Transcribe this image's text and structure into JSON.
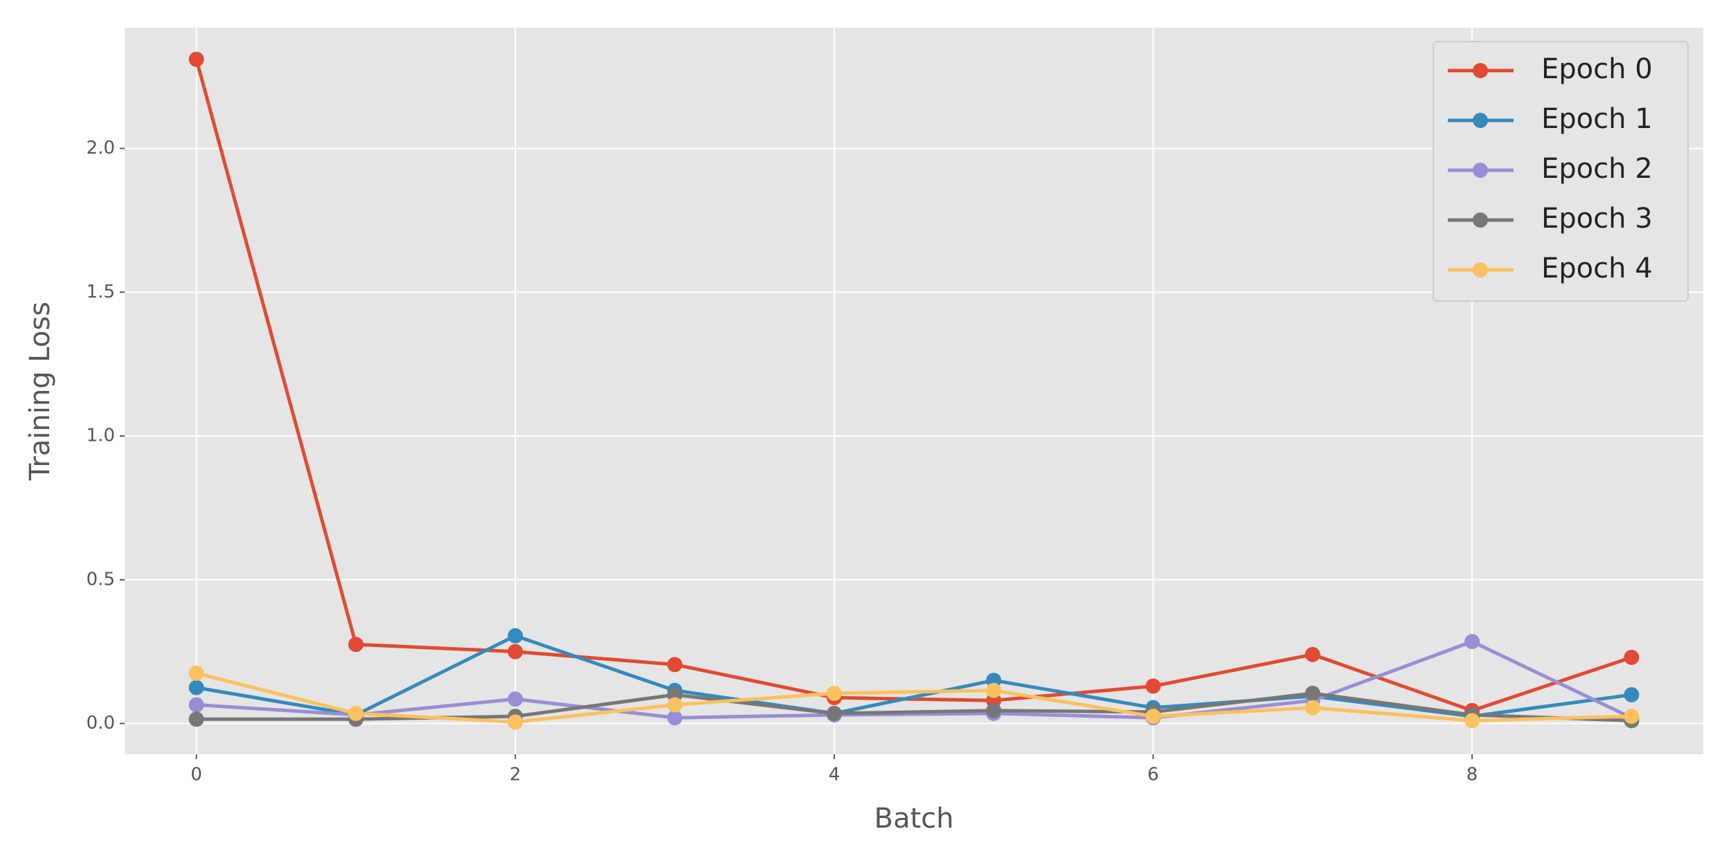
{
  "chart_data": {
    "type": "line",
    "x_label": "Batch",
    "y_label": "Training Loss",
    "x": [
      0,
      1,
      2,
      3,
      4,
      5,
      6,
      7,
      8,
      9
    ],
    "series": [
      {
        "name": "Epoch 0",
        "color": "#e24a33",
        "values": [
          2.31,
          0.275,
          0.25,
          0.205,
          0.09,
          0.08,
          0.13,
          0.24,
          0.045,
          0.23
        ]
      },
      {
        "name": "Epoch 1",
        "color": "#348abd",
        "values": [
          0.125,
          0.03,
          0.305,
          0.115,
          0.035,
          0.15,
          0.055,
          0.095,
          0.025,
          0.1
        ]
      },
      {
        "name": "Epoch 2",
        "color": "#988ed5",
        "values": [
          0.065,
          0.03,
          0.085,
          0.02,
          0.03,
          0.035,
          0.02,
          0.08,
          0.285,
          0.02
        ]
      },
      {
        "name": "Epoch 3",
        "color": "#777777",
        "values": [
          0.015,
          0.015,
          0.025,
          0.1,
          0.035,
          0.045,
          0.04,
          0.105,
          0.03,
          0.01
        ]
      },
      {
        "name": "Epoch 4",
        "color": "#fbc15e",
        "values": [
          0.175,
          0.035,
          0.005,
          0.065,
          0.105,
          0.115,
          0.025,
          0.055,
          0.01,
          0.025
        ]
      }
    ],
    "xlim": [
      -0.45,
      9.45
    ],
    "xticks": [
      0,
      2,
      4,
      6,
      8
    ],
    "ylim": [
      -0.107,
      2.42
    ],
    "yticks": [
      {
        "value": 0,
        "label": "0.0"
      },
      0.5,
      {
        "value": 1,
        "label": "1.0"
      },
      1.5,
      {
        "value": 2,
        "label": "2.0"
      }
    ],
    "grid": true,
    "legend": "upper right"
  }
}
